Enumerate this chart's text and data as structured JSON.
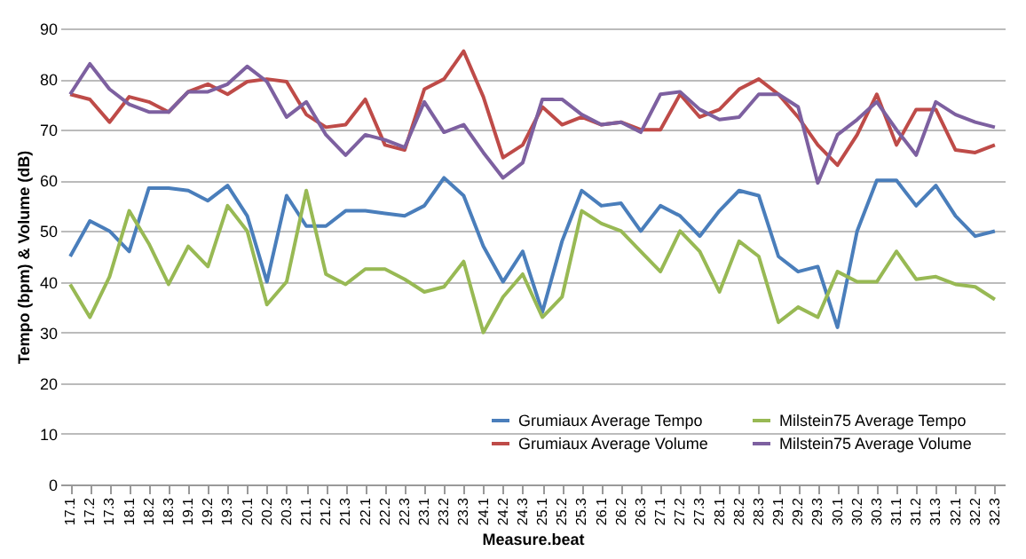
{
  "chart_data": {
    "type": "line",
    "xlabel": "Measure.beat",
    "ylabel": "Tempo (bpm) & Volume (dB)",
    "categories": [
      "17.1",
      "17.2",
      "17.3",
      "18.1",
      "18.2",
      "18.3",
      "19.1",
      "19.2",
      "19.3",
      "20.1",
      "20.2",
      "20.3",
      "21.1",
      "21.2",
      "21.3",
      "22.1",
      "22.2",
      "22.3",
      "23.1",
      "23.2",
      "23.3",
      "24.1",
      "24.2",
      "24.3",
      "25.1",
      "25.2",
      "25.3",
      "26.1",
      "26.2",
      "26.3",
      "27.1",
      "27.2",
      "27.3",
      "28.1",
      "28.2",
      "28.3",
      "29.1",
      "29.2",
      "29.3",
      "30.1",
      "30.2",
      "30.3",
      "31.1",
      "31.2",
      "31.3",
      "32.1",
      "32.2",
      "32.3"
    ],
    "series": [
      {
        "name": "Grumiaux Average Tempo",
        "color": "#4a7ebb",
        "values": [
          45,
          52,
          50,
          46,
          58.5,
          58.5,
          58,
          56,
          59,
          53,
          40,
          57,
          51,
          51,
          54,
          54,
          53.5,
          53,
          55,
          60.5,
          57,
          47,
          40,
          46,
          34,
          48,
          58,
          55,
          55.5,
          50,
          55,
          53,
          49,
          54,
          58,
          57,
          45,
          42,
          43,
          31,
          50,
          60,
          60,
          55,
          59,
          53,
          49,
          50
        ]
      },
      {
        "name": "Grumiaux Average Volume",
        "color": "#be4b48",
        "values": [
          77,
          76,
          71.5,
          76.5,
          75.5,
          73.5,
          77.5,
          79,
          77,
          79.5,
          80,
          79.5,
          73,
          70.5,
          71,
          76,
          67,
          66,
          78,
          80,
          85.5,
          76.5,
          64.5,
          67,
          74.5,
          71,
          72.5,
          71,
          71.5,
          70,
          70,
          77,
          72.5,
          74,
          78,
          80,
          77,
          72.5,
          67,
          63,
          69,
          77,
          67,
          74,
          74,
          66,
          65.5,
          67
        ]
      },
      {
        "name": "Milstein75 Average Tempo",
        "color": "#98b954",
        "values": [
          39.5,
          33,
          41,
          54,
          47.5,
          39.5,
          47,
          43,
          55,
          50,
          35.5,
          40,
          58,
          41.5,
          39.5,
          42.5,
          42.5,
          40.5,
          38,
          39,
          44,
          30,
          37,
          41.5,
          33,
          37,
          54,
          51.5,
          50,
          46,
          42,
          50,
          46,
          38,
          48,
          45,
          32,
          35,
          33,
          42,
          40,
          40,
          46,
          40.5,
          41,
          39.5,
          39,
          36.5
        ]
      },
      {
        "name": "Milstein75 Average Volume",
        "color": "#7d60a0",
        "values": [
          77,
          83,
          78,
          75,
          73.5,
          73.5,
          77.5,
          77.5,
          79,
          82.5,
          79.5,
          72.5,
          75.5,
          69,
          65,
          69,
          68,
          66.5,
          75.5,
          69.5,
          71,
          65.5,
          60.5,
          63.5,
          76,
          76,
          73,
          71,
          71.5,
          69.5,
          77,
          77.5,
          74,
          72,
          72.5,
          77,
          77,
          74.5,
          59.5,
          69,
          72,
          75.5,
          70,
          65,
          75.5,
          73,
          71.5,
          70.5
        ]
      }
    ],
    "ylim": [
      0,
      90
    ],
    "yticks": [
      0,
      10,
      20,
      30,
      40,
      50,
      60,
      70,
      80,
      90
    ],
    "grid": "y",
    "legend": "bottom right",
    "marker": "none",
    "line_style": "solid"
  }
}
